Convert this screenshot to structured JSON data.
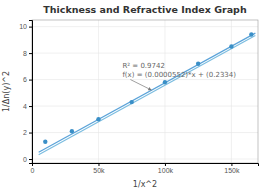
{
  "chart_data": {
    "type": "scatter",
    "title": "Thickness and Refractive Index Graph",
    "xlabel": "1/x^2",
    "ylabel": "1/Δn(y)^2",
    "series": [
      {
        "type": "scatter",
        "color": "#3a8fc7",
        "x": [
          10000,
          30000,
          50000,
          75000,
          100000,
          125000,
          150000,
          165000
        ],
        "values": [
          1.3,
          2.1,
          3.0,
          4.3,
          5.8,
          7.2,
          8.5,
          9.4
        ]
      },
      {
        "type": "line",
        "color": "#5ba3d9",
        "x": [
          5000,
          168000
        ],
        "values": [
          0.5094,
          9.507
        ]
      },
      {
        "type": "line",
        "color": "#7cbde0",
        "x": [
          5000,
          168000
        ],
        "values": [
          0.326,
          9.3236
        ]
      }
    ],
    "annotations": [
      {
        "text": [
          "R² = 0.9742",
          "f(x) = (0.0000552)*x + (0.2334)"
        ],
        "x": 90000,
        "y": 5.2,
        "text_x": 68000,
        "text_y": 7.4
      }
    ],
    "xlim": [
      0,
      170000
    ],
    "ylim": [
      -0.3,
      10.5
    ],
    "xticks": [
      0,
      {
        "value": 50000,
        "label": "50k"
      },
      {
        "value": 100000,
        "label": "100k"
      },
      {
        "value": 150000,
        "label": "150k"
      }
    ],
    "yticks": [
      0,
      2,
      4,
      6,
      8,
      10
    ],
    "grid": true
  }
}
